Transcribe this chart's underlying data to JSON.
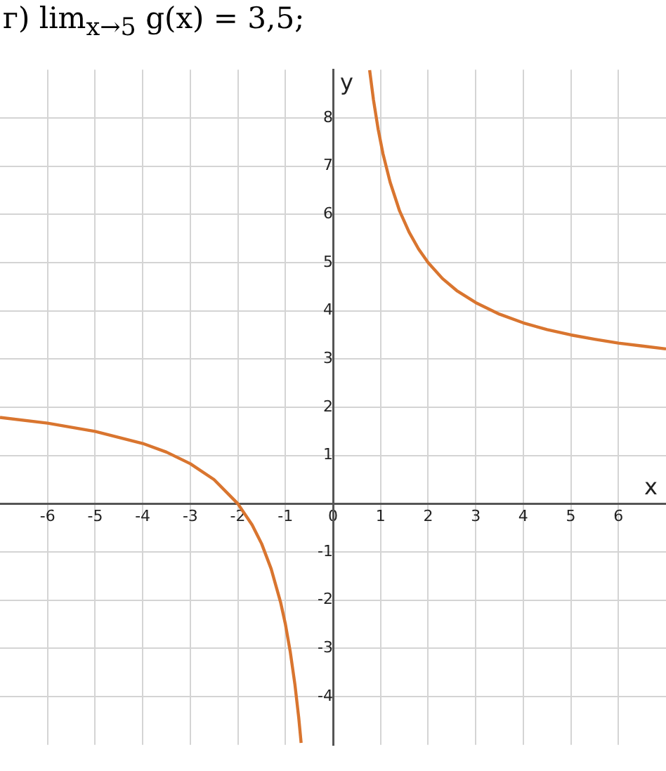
{
  "chart_data": {
    "type": "line",
    "title": "г) lim$_{x→5}$ g(x) = 3,5;",
    "xlabel": "x",
    "ylabel": "y",
    "xlim": [
      -7,
      7
    ],
    "ylim": [
      -5,
      9
    ],
    "xticks": [
      -6,
      -5,
      -4,
      -3,
      -2,
      -1,
      0,
      1,
      2,
      3,
      4,
      5,
      6
    ],
    "yticks": [
      -4,
      -3,
      -2,
      -1,
      1,
      2,
      3,
      4,
      5,
      6,
      7,
      8
    ],
    "grid": true,
    "marker": "none",
    "line_style": "solid",
    "series": [
      {
        "color": "#d9752f",
        "x": [
          0.77,
          0.85,
          0.95,
          1.05,
          1.2,
          1.4,
          1.6,
          1.8,
          2,
          2.3,
          2.6,
          3,
          3.5,
          4,
          4.5,
          5,
          5.5,
          6,
          6.5,
          7
        ],
        "values": [
          8.99,
          8.38,
          7.76,
          7.26,
          6.67,
          6.07,
          5.63,
          5.28,
          5,
          4.67,
          4.42,
          4.17,
          3.93,
          3.75,
          3.61,
          3.5,
          3.41,
          3.33,
          3.27,
          3.21
        ]
      },
      {
        "color": "#d9752f",
        "x": [
          -7,
          -6,
          -5,
          -4,
          -3.5,
          -3,
          -2.5,
          -2,
          -1.7,
          -1.5,
          -1.3,
          -1.1,
          -1,
          -0.9,
          -0.8,
          -0.72,
          -0.67
        ],
        "values": [
          1.79,
          1.67,
          1.5,
          1.25,
          1.07,
          0.83,
          0.5,
          0,
          -0.44,
          -0.83,
          -1.35,
          -2.05,
          -2.5,
          -3.06,
          -3.75,
          -4.44,
          -4.96
        ]
      }
    ]
  }
}
